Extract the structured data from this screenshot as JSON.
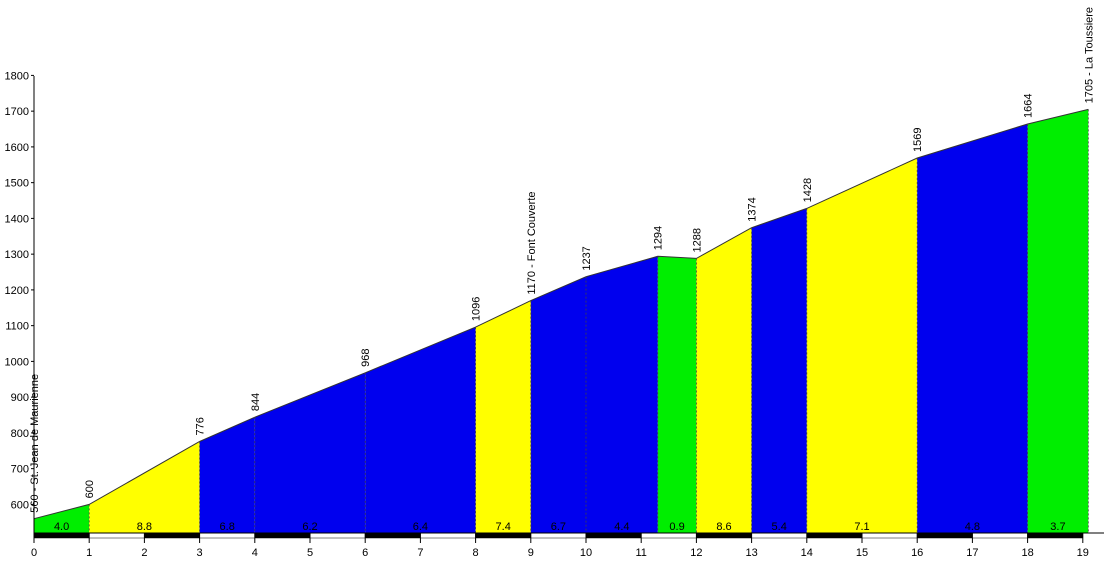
{
  "chart_data": {
    "type": "area",
    "xlim": [
      0,
      19
    ],
    "ylim": [
      520,
      1800
    ],
    "x_ticks": [
      "0",
      "1",
      "2",
      "3",
      "4",
      "5",
      "6",
      "7",
      "8",
      "9",
      "10",
      "11",
      "12",
      "13",
      "14",
      "15",
      "16",
      "17",
      "18",
      "19"
    ],
    "y_ticks": [
      "600",
      "700",
      "800",
      "900",
      "1000",
      "1100",
      "1200",
      "1300",
      "1400",
      "1500",
      "1600",
      "1700",
      "1800"
    ],
    "points": [
      {
        "x": 0,
        "y": 560,
        "label": "560 - St. Jean de Maurienne"
      },
      {
        "x": 1,
        "y": 600,
        "label": "600"
      },
      {
        "x": 3,
        "y": 776,
        "label": "776"
      },
      {
        "x": 4,
        "y": 844,
        "label": "844"
      },
      {
        "x": 6,
        "y": 968,
        "label": "968"
      },
      {
        "x": 8,
        "y": 1096,
        "label": "1096"
      },
      {
        "x": 9,
        "y": 1170,
        "label": "1170 - Font Couverte"
      },
      {
        "x": 10,
        "y": 1237,
        "label": "1237"
      },
      {
        "x": 11.3,
        "y": 1294,
        "label": "1294"
      },
      {
        "x": 12,
        "y": 1288,
        "label": "1288"
      },
      {
        "x": 13,
        "y": 1374,
        "label": "1374"
      },
      {
        "x": 14,
        "y": 1428,
        "label": "1428"
      },
      {
        "x": 16,
        "y": 1569,
        "label": "1569"
      },
      {
        "x": 18,
        "y": 1664,
        "label": "1664"
      },
      {
        "x": 19.1,
        "y": 1705,
        "label": "1705 - La Toussiere"
      }
    ],
    "segments": [
      {
        "from": 0,
        "to": 1,
        "gradient": "4.0",
        "color": "#00ee00"
      },
      {
        "from": 1,
        "to": 3,
        "gradient": "8.8",
        "color": "#ffff00"
      },
      {
        "from": 3,
        "to": 4,
        "gradient": "6.8",
        "color": "#0000ee"
      },
      {
        "from": 4,
        "to": 6,
        "gradient": "6.2",
        "color": "#0000ee"
      },
      {
        "from": 6,
        "to": 8,
        "gradient": "6.4",
        "color": "#0000ee"
      },
      {
        "from": 8,
        "to": 9,
        "gradient": "7.4",
        "color": "#ffff00"
      },
      {
        "from": 9,
        "to": 10,
        "gradient": "6.7",
        "color": "#0000ee"
      },
      {
        "from": 10,
        "to": 11.3,
        "gradient": "4.4",
        "color": "#0000ee"
      },
      {
        "from": 11.3,
        "to": 12,
        "gradient": "0.9",
        "color": "#00ee00"
      },
      {
        "from": 12,
        "to": 13,
        "gradient": "8.6",
        "color": "#ffff00"
      },
      {
        "from": 13,
        "to": 14,
        "gradient": "5.4",
        "color": "#0000ee"
      },
      {
        "from": 14,
        "to": 16,
        "gradient": "7.1",
        "color": "#ffff00"
      },
      {
        "from": 16,
        "to": 18,
        "gradient": "4.8",
        "color": "#0000ee"
      },
      {
        "from": 18,
        "to": 19.1,
        "gradient": "3.7",
        "color": "#00ee00"
      }
    ]
  }
}
